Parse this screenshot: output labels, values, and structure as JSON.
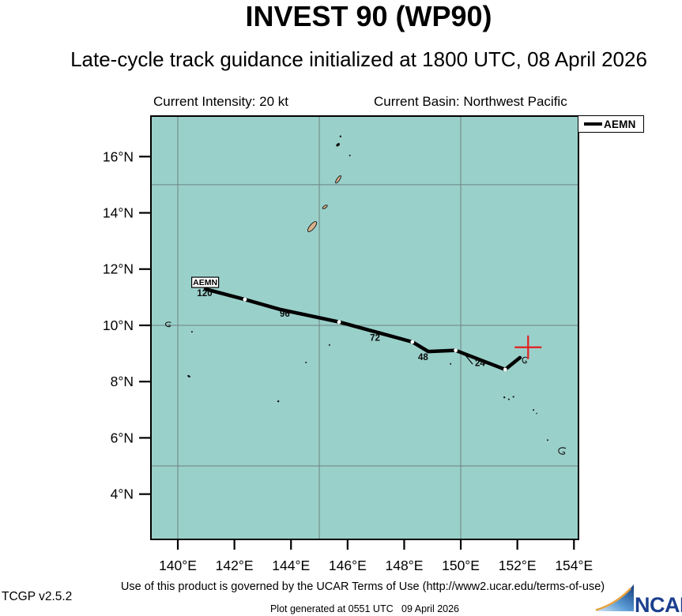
{
  "header": {
    "title": "INVEST 90 (WP90)",
    "subtitle": "Late-cycle track guidance initialized at 1800 UTC, 08 April 2026",
    "intensity_label": "Current Intensity: 20 kt",
    "basin_label": "Current Basin: Northwest Pacific"
  },
  "legend": {
    "entries": [
      {
        "label": "AEMN",
        "color": "#000000"
      }
    ]
  },
  "footer": {
    "terms": "Use of this product is governed by the UCAR Terms of Use (http://www2.ucar.edu/terms-of-use)",
    "generated": "Plot generated at 0551 UTC   09 April 2026",
    "version": "TCGP v2.5.2"
  },
  "logo": {
    "text": "NCAR"
  },
  "chart_data": {
    "type": "line",
    "title": "INVEST 90 (WP90)",
    "subtitle": "Late-cycle track guidance initialized at 1800 UTC, 08 April 2026",
    "projection": {
      "lon_min": 139.05,
      "lon_max": 154.16,
      "lat_min": 2.39,
      "lat_max": 17.44
    },
    "grid": {
      "lons": [
        140,
        145,
        150
      ],
      "lats": [
        5,
        10,
        15
      ],
      "color": "#6e8280"
    },
    "x_ticks": [
      {
        "lon": 140,
        "label": "140°E"
      },
      {
        "lon": 142,
        "label": "142°E"
      },
      {
        "lon": 144,
        "label": "144°E"
      },
      {
        "lon": 146,
        "label": "146°E"
      },
      {
        "lon": 148,
        "label": "148°E"
      },
      {
        "lon": 150,
        "label": "150°E"
      },
      {
        "lon": 152,
        "label": "152°E"
      },
      {
        "lon": 154,
        "label": "154°E"
      }
    ],
    "y_ticks": [
      {
        "lat": 16,
        "label": "16°N"
      },
      {
        "lat": 14,
        "label": "14°N"
      },
      {
        "lat": 12,
        "label": "12°N"
      },
      {
        "lat": 10,
        "label": "10°N"
      },
      {
        "lat": 8,
        "label": "8°N"
      },
      {
        "lat": 6,
        "label": "6°N"
      },
      {
        "lat": 4,
        "label": "4°N"
      }
    ],
    "colors": {
      "sea": "#9ad0ca",
      "land": "#d9b38c",
      "coast": "#111111",
      "track": "#000000",
      "marker": "#e02020",
      "border": "#000000"
    },
    "series": [
      {
        "name": "AEMN",
        "points": [
          [
            140.98,
            11.29
          ],
          [
            142.37,
            10.92
          ],
          [
            143.6,
            10.57
          ],
          [
            145.7,
            10.12
          ],
          [
            146.98,
            9.77
          ],
          [
            148.29,
            9.41
          ],
          [
            148.85,
            9.07
          ],
          [
            149.82,
            9.11
          ],
          [
            151.57,
            8.43
          ],
          [
            152.09,
            8.85
          ]
        ],
        "dots": [
          [
            142.37,
            10.92
          ],
          [
            145.7,
            10.12
          ],
          [
            148.29,
            9.41
          ],
          [
            149.82,
            9.11
          ],
          [
            151.57,
            8.43
          ]
        ],
        "hour_labels": [
          {
            "text": "120",
            "lon": 140.95,
            "lat": 11.04
          },
          {
            "text": "96",
            "lon": 143.78,
            "lat": 10.31
          },
          {
            "text": "72",
            "lon": 146.97,
            "lat": 9.45
          },
          {
            "text": "48",
            "lon": 148.67,
            "lat": 8.77
          },
          {
            "text": "24",
            "lon": 150.68,
            "lat": 8.55
          }
        ],
        "model_label": {
          "text": "AEMN",
          "lon": 140.98,
          "lat": 11.29
        },
        "leader": [
          [
            150.42,
            8.62
          ],
          [
            150.08,
            9.04
          ]
        ]
      }
    ],
    "current_position": {
      "lon": 152.38,
      "lat": 9.22,
      "marker": "cross"
    },
    "islands": [
      {
        "lon": 145.67,
        "lat": 15.19,
        "kind": "blob",
        "w": 11,
        "h": 3.5,
        "rot": -55,
        "land": true
      },
      {
        "lon": 145.2,
        "lat": 14.21,
        "kind": "blob",
        "w": 7,
        "h": 3,
        "rot": -35,
        "land": true
      },
      {
        "lon": 144.75,
        "lat": 13.51,
        "kind": "blob",
        "w": 16,
        "h": 6,
        "rot": -50,
        "land": true
      },
      {
        "lon": 145.75,
        "lat": 16.72,
        "kind": "speck",
        "r": 1.2
      },
      {
        "lon": 145.66,
        "lat": 16.42,
        "kind": "blob",
        "w": 4.5,
        "h": 2.5,
        "rot": -40,
        "land": false
      },
      {
        "lon": 146.08,
        "lat": 16.04,
        "kind": "speck",
        "r": 1
      },
      {
        "lon": 140.5,
        "lat": 9.77,
        "kind": "speck",
        "r": 1
      },
      {
        "lon": 140.39,
        "lat": 8.19,
        "kind": "blob",
        "w": 3.2,
        "h": 1.5,
        "rot": 30,
        "land": false
      },
      {
        "lon": 144.53,
        "lat": 8.68,
        "kind": "speck",
        "r": 1
      },
      {
        "lon": 145.36,
        "lat": 9.3,
        "kind": "speck",
        "r": 1
      },
      {
        "lon": 143.55,
        "lat": 7.3,
        "kind": "speck",
        "r": 1.2
      },
      {
        "lon": 149.64,
        "lat": 8.63,
        "kind": "speck",
        "r": 1
      },
      {
        "lon": 151.54,
        "lat": 7.44,
        "kind": "speck",
        "r": 1.2
      },
      {
        "lon": 151.7,
        "lat": 7.37,
        "kind": "speck",
        "r": 1
      },
      {
        "lon": 151.86,
        "lat": 7.46,
        "kind": "speck",
        "r": 1.1
      },
      {
        "lon": 152.57,
        "lat": 6.99,
        "kind": "speck",
        "r": 1
      },
      {
        "lon": 152.68,
        "lat": 6.87,
        "kind": "speck",
        "r": 0.8
      },
      {
        "lon": 153.07,
        "lat": 5.92,
        "kind": "speck",
        "r": 1
      },
      {
        "lon": 139.66,
        "lat": 10.03,
        "kind": "outline",
        "w": 9,
        "h": 7
      },
      {
        "lon": 153.58,
        "lat": 5.53,
        "kind": "outline",
        "w": 12,
        "h": 10
      },
      {
        "lon": 152.26,
        "lat": 8.76,
        "kind": "outline",
        "w": 8,
        "h": 9
      }
    ]
  }
}
